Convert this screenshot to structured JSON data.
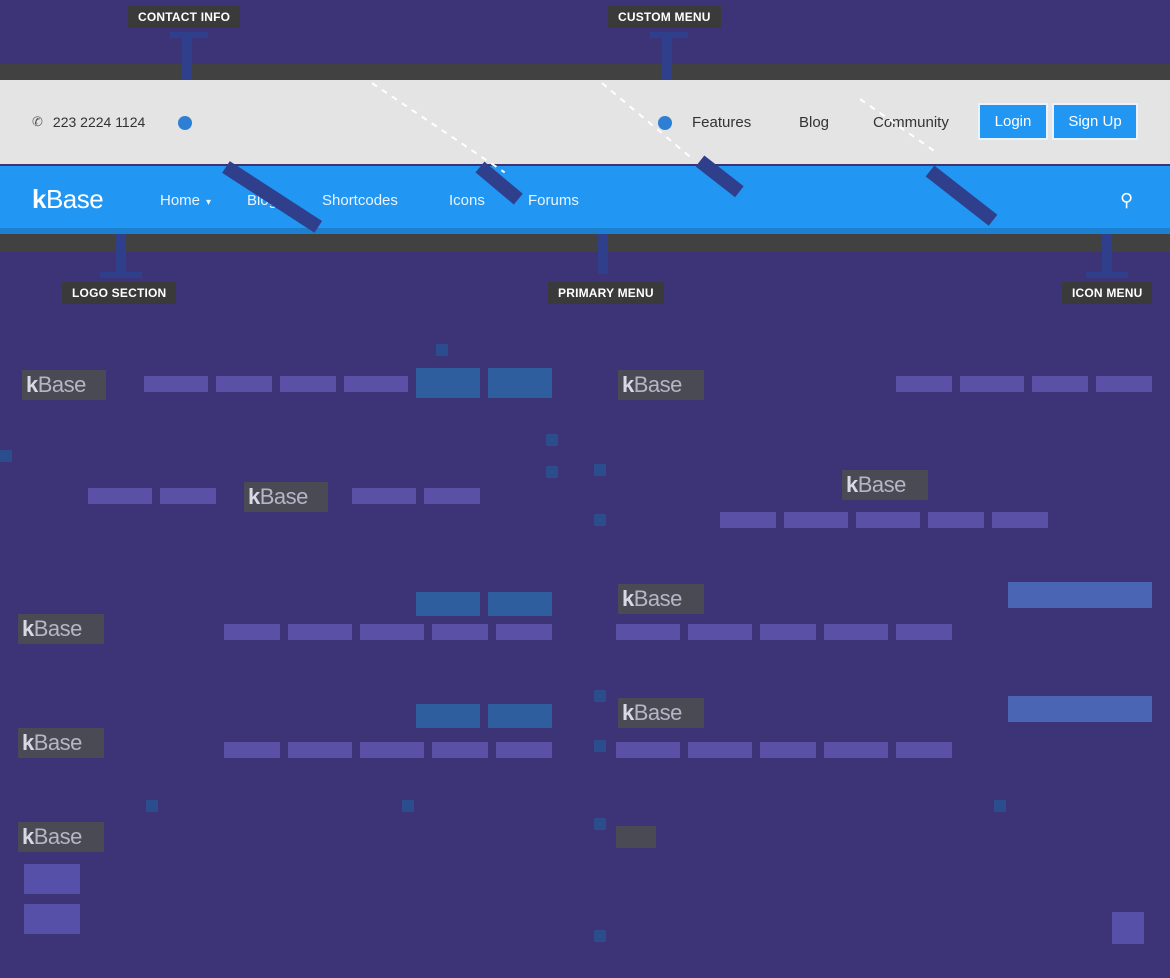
{
  "annotations": {
    "contact_info": "CONTACT INFO",
    "custom_menu": "CUSTOM MENU",
    "logo_section": "LOGO SECTION",
    "primary_menu": "PRIMARY MENU",
    "icon_menu": "ICON MENU"
  },
  "top_bar": {
    "phone_icon": "phone-icon",
    "phone": "223 2224 1124",
    "custom_menu": [
      "Features",
      "Blog",
      "Community"
    ],
    "login_label": "Login",
    "signup_label": "Sign Up"
  },
  "primary_bar": {
    "logo_k": "k",
    "logo_rest": "Base",
    "items": [
      "Home",
      "Blog",
      "Shortcodes",
      "Icons",
      "Forums"
    ],
    "home_caret": "▾",
    "search_icon": "search-icon"
  },
  "previews": {
    "logo_k": "k",
    "logo_rest": "Base"
  },
  "colors": {
    "background": "#3c3477",
    "top_bar": "#e4e4e4",
    "primary_bar": "#2196f3",
    "button": "#2196f3",
    "annotation_label": "#3a3a3a"
  }
}
